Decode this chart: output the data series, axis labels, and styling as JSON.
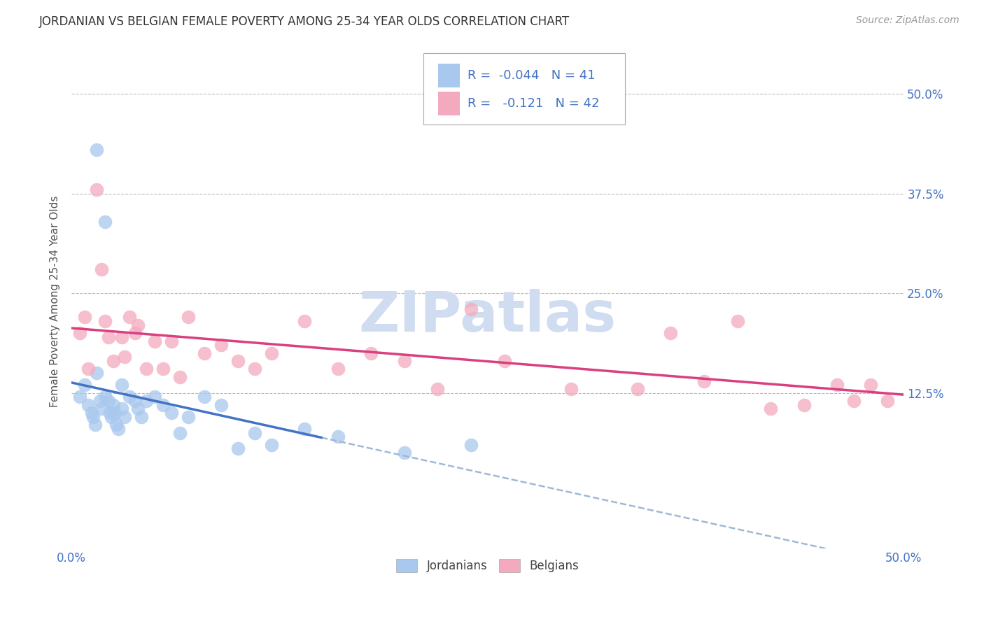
{
  "title": "JORDANIAN VS BELGIAN FEMALE POVERTY AMONG 25-34 YEAR OLDS CORRELATION CHART",
  "source": "Source: ZipAtlas.com",
  "ylabel": "Female Poverty Among 25-34 Year Olds",
  "xlim": [
    0.0,
    0.5
  ],
  "ylim": [
    -0.07,
    0.55
  ],
  "xtick_vals": [
    0.0,
    0.5
  ],
  "xtick_labels": [
    "0.0%",
    "50.0%"
  ],
  "ytick_vals": [
    0.125,
    0.25,
    0.375,
    0.5
  ],
  "ytick_labels": [
    "12.5%",
    "25.0%",
    "37.5%",
    "50.0%"
  ],
  "legend_r_jordan": "-0.044",
  "legend_n_jordan": "41",
  "legend_r_belgian": "-0.121",
  "legend_n_belgian": "42",
  "jordan_color": "#A8C8EE",
  "belgian_color": "#F4AABE",
  "jordan_line_color": "#4472C4",
  "belgian_line_color": "#D94080",
  "dashed_line_color": "#A0B8D8",
  "background_color": "#FFFFFF",
  "grid_color": "#BBBBBB",
  "watermark_color": "#D0DCF0",
  "title_fontsize": 12,
  "source_fontsize": 10,
  "label_fontsize": 11,
  "tick_fontsize": 12,
  "legend_fontsize": 13,
  "jordan_x": [
    0.005,
    0.008,
    0.01,
    0.012,
    0.013,
    0.014,
    0.015,
    0.015,
    0.017,
    0.018,
    0.02,
    0.02,
    0.022,
    0.023,
    0.024,
    0.025,
    0.026,
    0.027,
    0.028,
    0.03,
    0.03,
    0.032,
    0.035,
    0.038,
    0.04,
    0.042,
    0.045,
    0.05,
    0.055,
    0.06,
    0.065,
    0.07,
    0.08,
    0.09,
    0.1,
    0.11,
    0.12,
    0.14,
    0.16,
    0.2,
    0.24
  ],
  "jordan_y": [
    0.12,
    0.135,
    0.11,
    0.1,
    0.095,
    0.085,
    0.15,
    0.43,
    0.115,
    0.105,
    0.34,
    0.12,
    0.115,
    0.1,
    0.095,
    0.11,
    0.1,
    0.085,
    0.08,
    0.135,
    0.105,
    0.095,
    0.12,
    0.115,
    0.105,
    0.095,
    0.115,
    0.12,
    0.11,
    0.1,
    0.075,
    0.095,
    0.12,
    0.11,
    0.055,
    0.075,
    0.06,
    0.08,
    0.07,
    0.05,
    0.06
  ],
  "belgian_x": [
    0.005,
    0.008,
    0.01,
    0.015,
    0.018,
    0.02,
    0.022,
    0.025,
    0.03,
    0.032,
    0.035,
    0.038,
    0.04,
    0.045,
    0.05,
    0.055,
    0.06,
    0.065,
    0.07,
    0.08,
    0.09,
    0.1,
    0.11,
    0.12,
    0.14,
    0.16,
    0.18,
    0.2,
    0.22,
    0.24,
    0.26,
    0.3,
    0.34,
    0.36,
    0.38,
    0.4,
    0.42,
    0.44,
    0.46,
    0.47,
    0.48,
    0.49
  ],
  "belgian_y": [
    0.2,
    0.22,
    0.155,
    0.38,
    0.28,
    0.215,
    0.195,
    0.165,
    0.195,
    0.17,
    0.22,
    0.2,
    0.21,
    0.155,
    0.19,
    0.155,
    0.19,
    0.145,
    0.22,
    0.175,
    0.185,
    0.165,
    0.155,
    0.175,
    0.215,
    0.155,
    0.175,
    0.165,
    0.13,
    0.23,
    0.165,
    0.13,
    0.13,
    0.2,
    0.14,
    0.215,
    0.105,
    0.11,
    0.135,
    0.115,
    0.135,
    0.115
  ]
}
